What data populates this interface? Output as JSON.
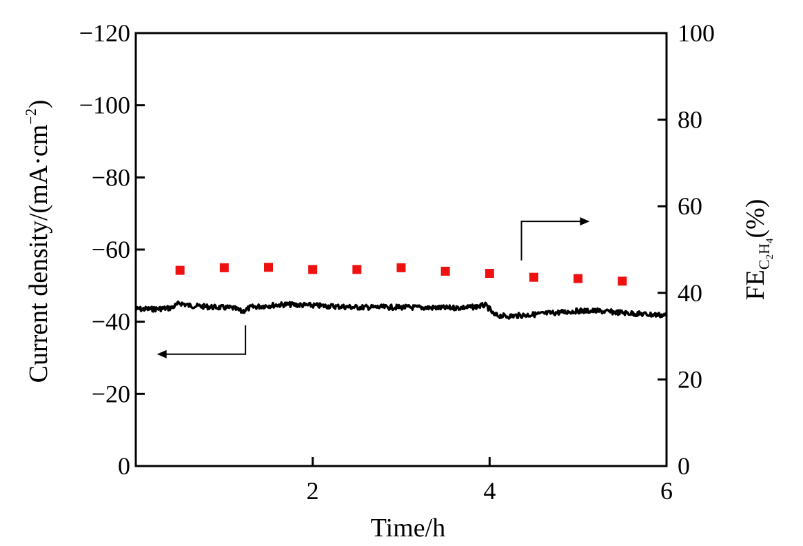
{
  "chart_data": {
    "type": "line",
    "x_axis": {
      "label": "Time/h",
      "range": [
        0,
        6
      ],
      "ticks": [
        2,
        4,
        6
      ],
      "tick_labels": [
        "2",
        "4",
        "6"
      ]
    },
    "y_left": {
      "label_parts": [
        "Current density/(mA·cm",
        "−2",
        ")"
      ],
      "range": [
        0,
        -120
      ],
      "ticks": [
        0,
        -20,
        -40,
        -60,
        -80,
        -100,
        -120
      ],
      "tick_labels": [
        "0",
        "−20",
        "−40",
        "−60",
        "−80",
        "−100",
        "−120"
      ]
    },
    "y_right": {
      "label_parts": [
        "FE",
        "C",
        "2",
        "H",
        "4",
        "(%)"
      ],
      "range": [
        0,
        100
      ],
      "ticks": [
        0,
        20,
        40,
        60,
        80,
        100
      ],
      "tick_labels": [
        "0",
        "20",
        "40",
        "60",
        "80",
        "100"
      ]
    },
    "series": [
      {
        "kind": "line",
        "axis": "left",
        "color": "#000000",
        "x": [
          0,
          0.2,
          0.4,
          0.5,
          0.6,
          0.9,
          1.1,
          1.2,
          1.3,
          1.5,
          1.7,
          2.0,
          2.5,
          3.0,
          3.5,
          3.8,
          3.95,
          4.0,
          4.05,
          4.2,
          4.5,
          4.8,
          5.0,
          5.2,
          5.5,
          5.8,
          6.0
        ],
        "y": [
          -43.5,
          -43.5,
          -43.8,
          -45.2,
          -44.5,
          -44.0,
          -43.8,
          -42.8,
          -44.0,
          -44.5,
          -44.8,
          -44.5,
          -44.0,
          -44.0,
          -43.8,
          -44.0,
          -44.6,
          -43.5,
          -41.8,
          -41.5,
          -42.0,
          -42.6,
          -43.0,
          -43.0,
          -42.5,
          -42.0,
          -41.8
        ]
      },
      {
        "kind": "scatter",
        "axis": "right",
        "color": "#ee1111",
        "x": [
          0.5,
          1.0,
          1.5,
          2.0,
          2.5,
          3.0,
          3.5,
          4.0,
          4.5,
          5.0,
          5.5
        ],
        "y": [
          45.2,
          45.8,
          45.9,
          45.4,
          45.4,
          45.8,
          45.0,
          44.5,
          43.6,
          43.3,
          42.7
        ]
      }
    ],
    "annotations": [
      {
        "type": "arrow",
        "points_to": "left-axis",
        "near_series": "line"
      },
      {
        "type": "arrow",
        "points_to": "right-axis",
        "near_series": "scatter"
      }
    ]
  }
}
